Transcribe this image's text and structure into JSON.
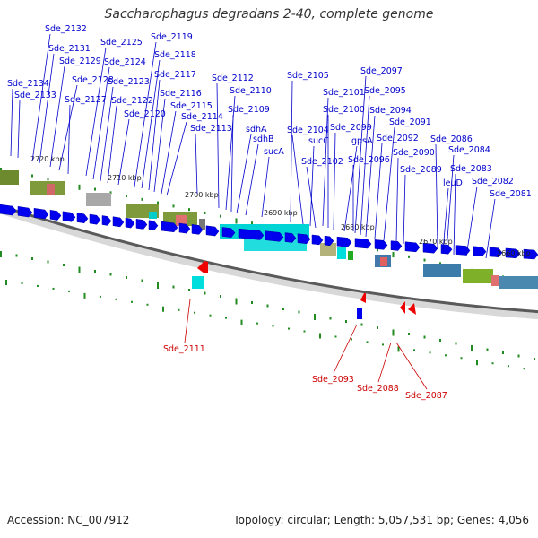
{
  "title": "Saccharophagus degradans 2-40, complete genome",
  "footer": {
    "accession": "Accession: NC_007912",
    "topology": "Topology: circular; Length: 5,057,531 bp; Genes: 4,056"
  },
  "colors": {
    "forward_gene": "#0000ee",
    "reverse_gene": "#ee0000",
    "tick": "#228b22",
    "backbone": "#555555",
    "forward_label": "#0000cc",
    "reverse_label": "#cc0000"
  },
  "kbp_labels": [
    "2720 kbp",
    "2710 kbp",
    "2700 kbp",
    "2690 kbp",
    "2680 kbp",
    "2670 kbp",
    "2660 kbp"
  ],
  "forward_labels": [
    "Sde_2134",
    "Sde_2133",
    "Sde_2132",
    "Sde_2131",
    "Sde_2129",
    "Sde_2128",
    "Sde_2127",
    "Sde_2125",
    "Sde_2124",
    "Sde_2123",
    "Sde_2122",
    "Sde_2120",
    "Sde_2119",
    "Sde_2118",
    "Sde_2117",
    "Sde_2116",
    "Sde_2115",
    "Sde_2114",
    "Sde_2113",
    "Sde_2112",
    "Sde_2110",
    "Sde_2109",
    "sdhA",
    "sdhB",
    "sucA",
    "Sde_2105",
    "Sde_2104",
    "sucC",
    "Sde_2102",
    "Sde_2101",
    "Sde_2100",
    "Sde_2099",
    "gpsA",
    "Sde_2096",
    "Sde_2097",
    "Sde_2095",
    "Sde_2094",
    "Sde_2092",
    "Sde_2091",
    "Sde_2090",
    "Sde_2089",
    "Sde_2086",
    "Sde_2084",
    "leuD",
    "Sde_2083",
    "Sde_2082",
    "Sde_2081"
  ],
  "reverse_labels": [
    "Sde_2111",
    "Sde_2093",
    "Sde_2088",
    "Sde_2087"
  ]
}
